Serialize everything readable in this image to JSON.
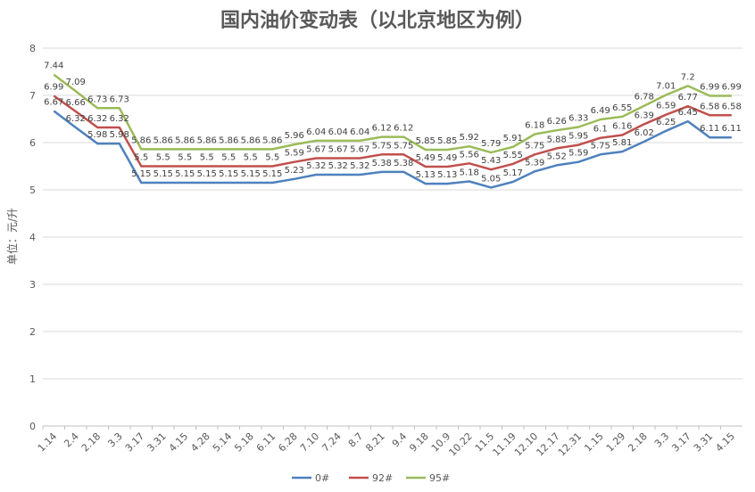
{
  "chart_data": {
    "type": "line",
    "title": "国内油价变动表（以北京地区为例）",
    "ylabel": "单位：元/升",
    "xlabel": "",
    "ylim": [
      0,
      8
    ],
    "yticks": [
      0,
      1,
      2,
      3,
      4,
      5,
      6,
      7,
      8
    ],
    "grid": true,
    "legend_position": "bottom",
    "x": [
      "1.14",
      "2.4",
      "2.18",
      "3.3",
      "3.17",
      "3.31",
      "4.15",
      "4.28",
      "5.14",
      "5.18",
      "6.11",
      "6.28",
      "7.10",
      "7.24",
      "8.7",
      "8.21",
      "9.4",
      "9.18",
      "10.9",
      "10.22",
      "11.5",
      "11.19",
      "12.10",
      "12.17",
      "12.31",
      "1.15",
      "1.29",
      "2.18",
      "3.3",
      "3.17",
      "3.31",
      "4.15"
    ],
    "series": [
      {
        "name": "0#",
        "color": "#4f81bd",
        "values": [
          6.67,
          6.32,
          5.98,
          5.98,
          5.15,
          5.15,
          5.15,
          5.15,
          5.15,
          5.15,
          5.15,
          5.23,
          5.32,
          5.32,
          5.32,
          5.38,
          5.38,
          5.13,
          5.13,
          5.18,
          5.05,
          5.17,
          5.39,
          5.52,
          5.59,
          5.75,
          5.81,
          6.02,
          6.25,
          6.45,
          6.11,
          6.11
        ]
      },
      {
        "name": "92#",
        "color": "#c0504d",
        "values": [
          6.99,
          6.66,
          6.32,
          6.32,
          5.5,
          5.5,
          5.5,
          5.5,
          5.5,
          5.5,
          5.5,
          5.59,
          5.67,
          5.67,
          5.67,
          5.75,
          5.75,
          5.49,
          5.49,
          5.56,
          5.43,
          5.55,
          5.75,
          5.88,
          5.95,
          6.1,
          6.16,
          6.39,
          6.59,
          6.77,
          6.58,
          6.58
        ]
      },
      {
        "name": "95#",
        "color": "#9bbb59",
        "values": [
          7.44,
          7.09,
          6.73,
          6.73,
          5.86,
          5.86,
          5.86,
          5.86,
          5.86,
          5.86,
          5.86,
          5.96,
          6.04,
          6.04,
          6.04,
          6.12,
          6.12,
          5.85,
          5.85,
          5.92,
          5.79,
          5.91,
          6.18,
          6.26,
          6.33,
          6.49,
          6.55,
          6.78,
          7.01,
          7.2,
          6.99,
          6.99
        ]
      }
    ]
  }
}
